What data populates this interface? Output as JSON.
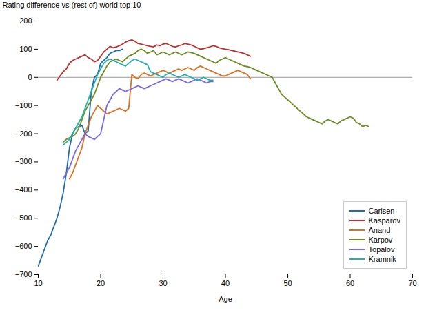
{
  "chart_data": {
    "type": "line",
    "title": "",
    "xlabel": "Age",
    "ylabel": "Rating difference vs (rest of) world top 10",
    "xlim": [
      10,
      70
    ],
    "ylim": [
      -700,
      200
    ],
    "xticks": [
      10,
      20,
      30,
      40,
      50,
      60,
      70
    ],
    "yticks": [
      -700,
      -600,
      -500,
      -400,
      -300,
      -200,
      -100,
      0,
      100,
      200
    ],
    "grid": false,
    "legend": "lower right",
    "series": [
      {
        "name": "Carlsen",
        "color": "#1F6CB0",
        "x": [
          10,
          10.5,
          11,
          11.5,
          12,
          12.5,
          13,
          13.5,
          14,
          14.5,
          15,
          15.5,
          16,
          16.5,
          17,
          17.5,
          18,
          18.5,
          19,
          19.5,
          20,
          20.5,
          21,
          21.5,
          22,
          22.5,
          23,
          23.5
        ],
        "values": [
          -670,
          -640,
          -610,
          -580,
          -560,
          -530,
          -500,
          -460,
          -410,
          -340,
          -250,
          -200,
          -180,
          -175,
          -170,
          -200,
          -190,
          -50,
          0,
          10,
          50,
          60,
          70,
          85,
          90,
          95,
          95,
          100
        ]
      },
      {
        "name": "Kasparov",
        "color": "#BF3030",
        "x": [
          13,
          13.5,
          14,
          14.5,
          15,
          15.5,
          16,
          16.5,
          17,
          17.5,
          18,
          18.5,
          19,
          19.5,
          20,
          20.5,
          21,
          21.5,
          22,
          22.5,
          23,
          23.5,
          24,
          24.5,
          25,
          25.5,
          26,
          26.5,
          27,
          27.5,
          28,
          28.5,
          29,
          29.5,
          30,
          30.5,
          31,
          31.5,
          32,
          32.5,
          33,
          33.5,
          34,
          34.5,
          35,
          35.5,
          36,
          36.5,
          37,
          37.5,
          38,
          38.5,
          39,
          39.5,
          40,
          40.5,
          41,
          41.5,
          42,
          42.5,
          43,
          43.5,
          44
        ],
        "values": [
          -10,
          5,
          20,
          30,
          50,
          60,
          65,
          70,
          75,
          80,
          70,
          65,
          55,
          60,
          75,
          90,
          100,
          110,
          105,
          108,
          112,
          118,
          125,
          130,
          133,
          128,
          120,
          118,
          115,
          112,
          110,
          108,
          115,
          112,
          118,
          120,
          115,
          110,
          108,
          112,
          115,
          120,
          118,
          115,
          110,
          105,
          100,
          102,
          105,
          108,
          112,
          110,
          105,
          102,
          100,
          98,
          95,
          93,
          90,
          88,
          85,
          80,
          75
        ]
      },
      {
        "name": "Anand",
        "color": "#E07020",
        "x": [
          15,
          15.5,
          16,
          16.5,
          17,
          17.5,
          18,
          18.5,
          19,
          19.5,
          20,
          20.5,
          21,
          21.5,
          22,
          22.5,
          23,
          23.5,
          24,
          24.5,
          25,
          25.5,
          26,
          26.5,
          27,
          27.5,
          28,
          28.5,
          29,
          29.5,
          30,
          30.5,
          31,
          31.5,
          32,
          32.5,
          33,
          33.5,
          34,
          34.5,
          35,
          35.5,
          36,
          36.5,
          37,
          37.5,
          38,
          38.5,
          39,
          39.5,
          40,
          40.5,
          41,
          41.5,
          42,
          42.5,
          43,
          43.5,
          44
        ],
        "values": [
          -360,
          -340,
          -310,
          -280,
          -250,
          -200,
          -170,
          -140,
          -120,
          -100,
          -110,
          -120,
          -130,
          -125,
          -120,
          -115,
          -110,
          -115,
          -120,
          -110,
          10,
          0,
          -5,
          10,
          15,
          10,
          5,
          10,
          15,
          20,
          25,
          20,
          15,
          20,
          25,
          30,
          25,
          30,
          35,
          30,
          25,
          35,
          40,
          35,
          30,
          25,
          20,
          15,
          10,
          5,
          5,
          10,
          15,
          20,
          25,
          20,
          15,
          10,
          -5
        ]
      },
      {
        "name": "Karpov",
        "color": "#6B8E23",
        "x": [
          14,
          14.5,
          15,
          15.5,
          16,
          16.5,
          17,
          17.5,
          18,
          18.5,
          19,
          19.5,
          20,
          20.5,
          21,
          21.5,
          22,
          22.5,
          23,
          23.5,
          24,
          24.5,
          25,
          25.5,
          26,
          26.5,
          27,
          27.5,
          28,
          28.5,
          29,
          29.5,
          30,
          30.5,
          31,
          31.5,
          32,
          32.5,
          33,
          33.5,
          34,
          34.5,
          35,
          35.5,
          36,
          36.5,
          37,
          37.5,
          38,
          38.5,
          39,
          39.5,
          40,
          40.5,
          41,
          41.5,
          42,
          42.5,
          43,
          43.5,
          44,
          44.5,
          45,
          45.5,
          46,
          46.5,
          47,
          47.5,
          48,
          48.5,
          49,
          49.5,
          50,
          50.5,
          51,
          51.5,
          52,
          52.5,
          53,
          53.5,
          54,
          54.5,
          55,
          55.5,
          56,
          56.5,
          57,
          57.5,
          58,
          58.5,
          59,
          59.5,
          60,
          60.5,
          61,
          61.5,
          62,
          62.5,
          63
        ],
        "values": [
          -230,
          -220,
          -215,
          -210,
          -200,
          -180,
          -150,
          -120,
          -100,
          -80,
          -60,
          -30,
          0,
          20,
          40,
          55,
          60,
          65,
          60,
          55,
          65,
          75,
          80,
          85,
          95,
          100,
          95,
          85,
          90,
          95,
          80,
          85,
          90,
          85,
          80,
          85,
          90,
          85,
          80,
          85,
          90,
          88,
          85,
          80,
          75,
          70,
          65,
          60,
          55,
          50,
          60,
          65,
          70,
          65,
          60,
          55,
          50,
          45,
          40,
          38,
          35,
          30,
          25,
          20,
          15,
          10,
          5,
          0,
          -20,
          -40,
          -60,
          -70,
          -80,
          -90,
          -100,
          -110,
          -120,
          -130,
          -140,
          -145,
          -150,
          -155,
          -160,
          -165,
          -155,
          -150,
          -155,
          -160,
          -165,
          -155,
          -150,
          -145,
          -140,
          -145,
          -160,
          -165,
          -175,
          -170,
          -175
        ]
      },
      {
        "name": "Topalov",
        "color": "#7B68EE",
        "x": [
          14,
          14.5,
          15,
          15.5,
          16,
          16.5,
          17,
          17.5,
          18,
          18.5,
          19,
          19.5,
          20,
          20.5,
          21,
          21.5,
          22,
          22.5,
          23,
          23.5,
          24,
          24.5,
          25,
          25.5,
          26,
          26.5,
          27,
          27.5,
          28,
          28.5,
          29,
          29.5,
          30,
          30.5,
          31,
          31.5,
          32,
          32.5,
          33,
          33.5,
          34,
          34.5,
          35,
          35.5,
          36,
          36.5,
          37,
          37.5,
          38
        ],
        "values": [
          -360,
          -340,
          -320,
          -290,
          -260,
          -240,
          -220,
          -200,
          -210,
          -215,
          -220,
          -210,
          -200,
          -150,
          -100,
          -80,
          -60,
          -50,
          -40,
          -45,
          -50,
          -45,
          -40,
          -35,
          -30,
          -35,
          -40,
          -35,
          -30,
          -25,
          -20,
          -15,
          -10,
          -5,
          -10,
          -15,
          -10,
          -5,
          -10,
          -15,
          -20,
          -15,
          -10,
          -5,
          -10,
          -15,
          -20,
          -15,
          -15
        ]
      },
      {
        "name": "Kramnik",
        "color": "#20B2AA",
        "x": [
          14,
          14.5,
          15,
          15.5,
          16,
          16.5,
          17,
          17.5,
          18,
          18.5,
          19,
          19.5,
          20,
          20.5,
          21,
          21.5,
          22,
          22.5,
          23,
          23.5,
          24,
          24.5,
          25,
          25.5,
          26,
          26.5,
          27,
          27.5,
          28,
          28.5,
          29,
          29.5,
          30,
          30.5,
          31,
          31.5,
          32,
          32.5,
          33,
          33.5,
          34,
          34.5,
          35,
          35.5,
          36,
          36.5,
          37,
          37.5,
          38
        ],
        "values": [
          -240,
          -230,
          -220,
          -200,
          -180,
          -160,
          -140,
          -110,
          -80,
          -50,
          -20,
          10,
          30,
          50,
          60,
          65,
          60,
          55,
          50,
          45,
          40,
          50,
          60,
          65,
          60,
          55,
          50,
          45,
          20,
          15,
          10,
          5,
          0,
          10,
          15,
          10,
          5,
          0,
          5,
          10,
          5,
          0,
          -5,
          -10,
          -5,
          0,
          -5,
          -10,
          -10
        ]
      }
    ]
  }
}
